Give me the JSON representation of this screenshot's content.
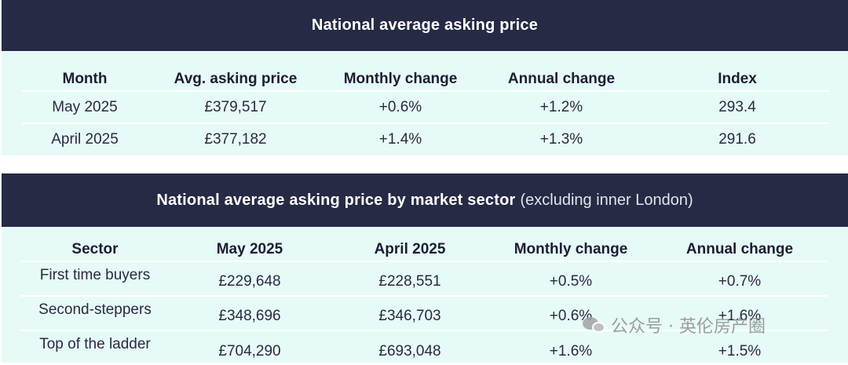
{
  "table1": {
    "title": "National average asking price",
    "headers": [
      "Month",
      "Avg. asking price",
      "Monthly change",
      "Annual change",
      "Index"
    ],
    "rows": [
      [
        "May 2025",
        "£379,517",
        "+0.6%",
        "+1.2%",
        "293.4"
      ],
      [
        "April 2025",
        "£377,182",
        "+1.4%",
        "+1.3%",
        "291.6"
      ]
    ]
  },
  "table2": {
    "title": "National average asking price by market sector",
    "title_note": "(excluding inner London)",
    "headers": [
      "Sector",
      "May 2025",
      "April 2025",
      "Monthly change",
      "Annual change"
    ],
    "rows": [
      [
        "First time buyers",
        "£229,648",
        "£228,551",
        "+0.5%",
        "+0.7%"
      ],
      [
        "Second-steppers",
        "£348,696",
        "£346,703",
        "+0.6%",
        "+1.6%"
      ],
      [
        "Top of the ladder",
        "£704,290",
        "£693,048",
        "+1.6%",
        "+1.5%"
      ]
    ]
  },
  "watermark": {
    "text": "公众号 · 英伦房产圈",
    "icon": "wechat-icon"
  },
  "colors": {
    "title_bar": "#262a44",
    "panel_bg": "#e6faf7",
    "divider": "#ffffff"
  }
}
